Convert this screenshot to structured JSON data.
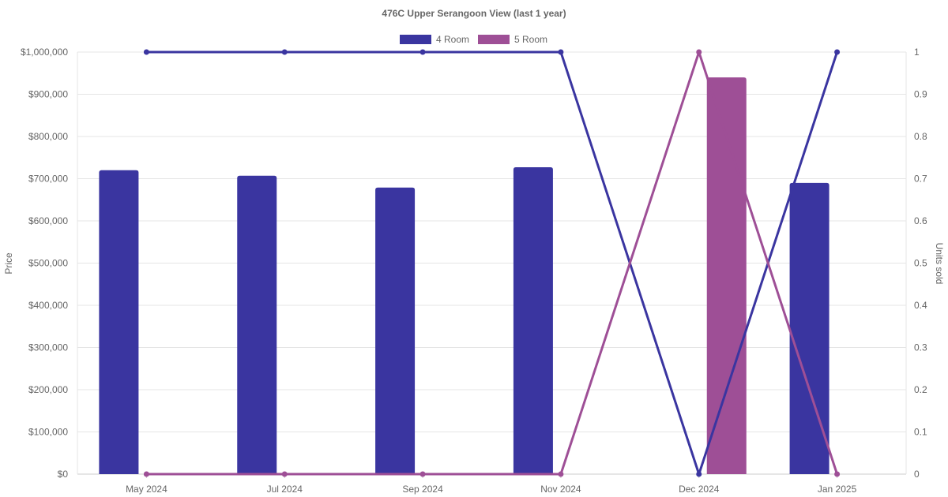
{
  "chart_data": {
    "type": "bar",
    "title": "476C Upper Serangoon View (last 1 year)",
    "categories": [
      "May 2024",
      "Jul 2024",
      "Sep 2024",
      "Nov 2024",
      "Dec 2024",
      "Jan 2025"
    ],
    "y_left": {
      "label": "Price",
      "range": [
        0,
        1000000
      ],
      "ticks": [
        "$0",
        "$100,000",
        "$200,000",
        "$300,000",
        "$400,000",
        "$500,000",
        "$600,000",
        "$700,000",
        "$800,000",
        "$900,000",
        "$1,000,000"
      ]
    },
    "y_right": {
      "label": "Units sold",
      "range": [
        0,
        1
      ],
      "ticks": [
        "0",
        "0.1",
        "0.2",
        "0.3",
        "0.4",
        "0.5",
        "0.6",
        "0.7",
        "0.8",
        "0.9",
        "1"
      ]
    },
    "legend": {
      "position": "top",
      "entries": [
        "4 Room",
        "5 Room"
      ]
    },
    "grid": true,
    "bar_series": [
      {
        "name": "4 Room",
        "color": "#3a35a0",
        "values": [
          720000,
          707000,
          679000,
          727000,
          null,
          690000
        ]
      },
      {
        "name": "5 Room",
        "color": "#9e4f96",
        "values": [
          null,
          null,
          null,
          null,
          940000,
          null
        ]
      }
    ],
    "line_series": [
      {
        "name": "4 Room",
        "color": "#3a35a0",
        "axis": "right",
        "values": [
          1,
          1,
          1,
          1,
          0,
          1
        ]
      },
      {
        "name": "5 Room",
        "color": "#9e4f96",
        "axis": "right",
        "values": [
          0,
          0,
          0,
          0,
          1,
          0
        ]
      }
    ]
  }
}
